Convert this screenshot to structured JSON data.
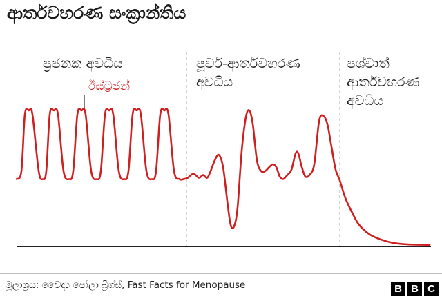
{
  "header": {
    "title": "ආර්තවහරණ සංක්‍රාන්තිය"
  },
  "footer": {
    "source": "මූලාශ්‍රය: වෛද්‍ය පෝලා බ්‍රිග්ස්, Fast Facts for Menopause",
    "logo_letters": [
      "B",
      "B",
      "C"
    ]
  },
  "colors": {
    "line": "#d01f1f",
    "label_accent": "#cc1a1a",
    "divider": "#aaaaaa",
    "axis": "#222222"
  },
  "chart_data": {
    "type": "line",
    "title": "ආර්තවහරණ සංක්‍රාන්තිය",
    "xlabel": "",
    "ylabel": "",
    "grid": false,
    "legend": "none",
    "phases": [
      {
        "lines": [
          "ප්‍රජනක අවධිය"
        ]
      },
      {
        "lines": [
          "පූර්ව-ආර්තවහරණ",
          "අවධිය"
        ]
      },
      {
        "lines": [
          "පශ්චාත්",
          "ආර්තවහරණ",
          "අවධිය"
        ]
      }
    ],
    "phase_boundaries": [
      270,
      492
    ],
    "xlim": [
      0,
      640
    ],
    "ylim": [
      0,
      100
    ],
    "series": [
      {
        "name": "ඊස්ට්‍රජන්",
        "x": [
          24,
          31,
          36,
          42,
          47,
          56,
          62,
          67,
          72,
          78,
          84,
          92,
          100,
          106,
          112,
          118,
          124,
          132,
          140,
          146,
          152,
          158,
          164,
          172,
          180,
          186,
          192,
          198,
          204,
          212,
          220,
          226,
          232,
          238,
          244,
          252,
          260,
          266,
          272,
          280,
          288,
          294,
          300,
          305,
          311,
          317,
          323,
          329,
          334,
          339,
          344,
          350,
          356,
          361,
          366,
          372,
          378,
          384,
          390,
          395,
          400,
          405,
          410,
          416,
          422,
          428,
          432,
          437,
          442,
          448,
          455,
          462,
          468,
          474,
          480,
          486,
          492,
          500,
          510,
          520,
          535,
          552,
          570,
          590,
          612,
          622
        ],
        "values": [
          49,
          55,
          97,
          100,
          97,
          55,
          49,
          55,
          97,
          100,
          97,
          55,
          49,
          55,
          97,
          100,
          97,
          55,
          49,
          55,
          97,
          100,
          97,
          55,
          49,
          55,
          97,
          100,
          97,
          55,
          49,
          55,
          97,
          100,
          97,
          55,
          49,
          49,
          50,
          53,
          50,
          52,
          50,
          55,
          63,
          67,
          58,
          33,
          15,
          14,
          28,
          70,
          95,
          100,
          90,
          63,
          55,
          55,
          58,
          60,
          58,
          51,
          49,
          52,
          56,
          68,
          68,
          58,
          51,
          52,
          60,
          92,
          96,
          90,
          73,
          56,
          48,
          35,
          24,
          15,
          8,
          4,
          1.5,
          0.5,
          0.2,
          0.1
        ]
      }
    ],
    "annotation": {
      "text": "ඊස්ට්‍රජන්",
      "target_index": 21
    }
  }
}
